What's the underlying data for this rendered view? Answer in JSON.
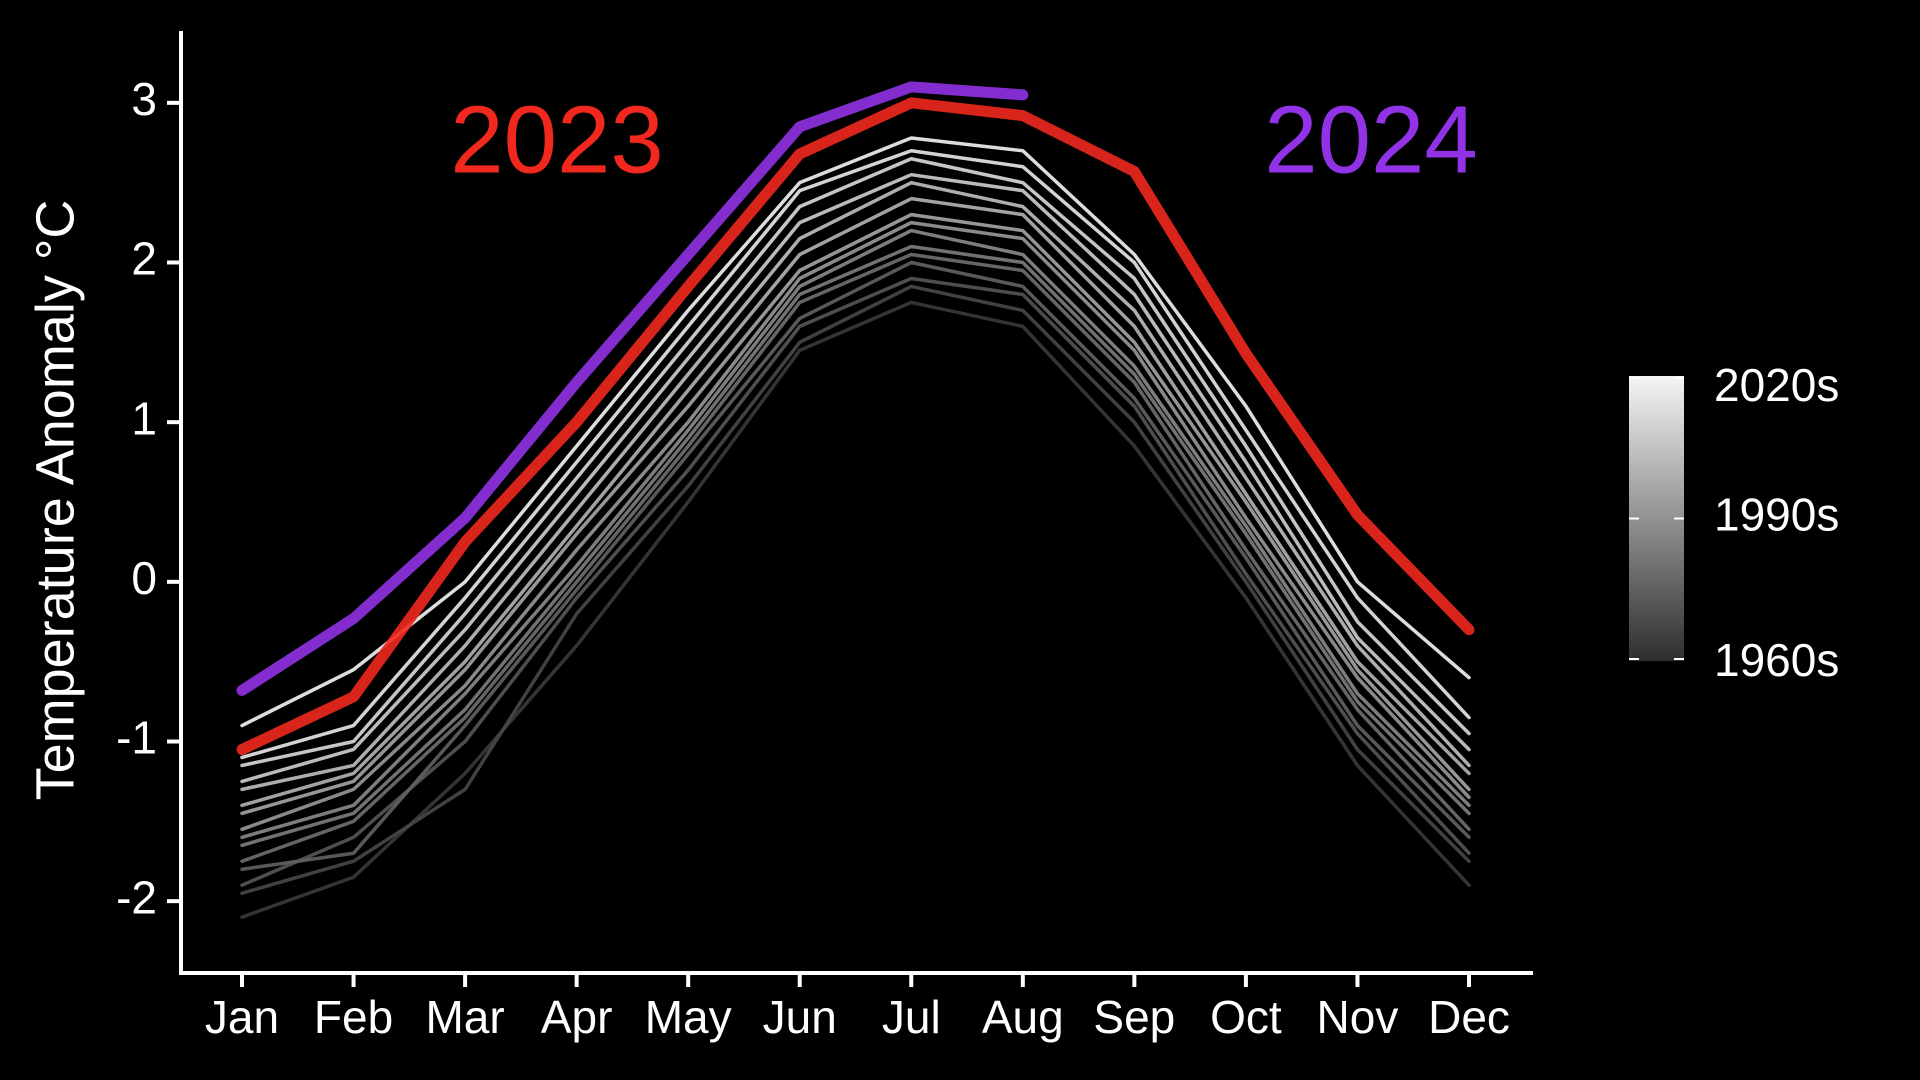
{
  "chart_data": {
    "type": "line",
    "ylabel": "Temperature Anomaly °C",
    "categories": [
      "Jan",
      "Feb",
      "Mar",
      "Apr",
      "May",
      "Jun",
      "Jul",
      "Aug",
      "Sep",
      "Oct",
      "Nov",
      "Dec"
    ],
    "ylim": [
      -2.45,
      3.45
    ],
    "yticks": [
      -2,
      -1,
      0,
      1,
      2,
      3
    ],
    "series": [
      {
        "color": "#3a3a3a",
        "values": [
          -2.1,
          -1.85,
          -1.2,
          -0.4,
          0.5,
          1.45,
          1.75,
          1.6,
          0.85,
          -0.1,
          -1.15,
          -1.9
        ]
      },
      {
        "color": "#484848",
        "values": [
          -1.95,
          -1.75,
          -1.3,
          -0.2,
          0.6,
          1.5,
          1.85,
          1.7,
          1.0,
          0.0,
          -1.05,
          -1.75
        ]
      },
      {
        "color": "#565656",
        "values": [
          -1.9,
          -1.6,
          -1.0,
          -0.1,
          0.7,
          1.6,
          1.9,
          1.8,
          1.1,
          0.05,
          -0.95,
          -1.7
        ]
      },
      {
        "color": "#636363",
        "values": [
          -1.8,
          -1.7,
          -0.9,
          -0.05,
          0.8,
          1.65,
          2.0,
          1.85,
          1.15,
          0.15,
          -0.9,
          -1.6
        ]
      },
      {
        "color": "#707070",
        "values": [
          -1.75,
          -1.5,
          -0.85,
          0.0,
          0.85,
          1.75,
          2.05,
          1.95,
          1.25,
          0.2,
          -0.8,
          -1.55
        ]
      },
      {
        "color": "#7e7e7e",
        "values": [
          -1.65,
          -1.45,
          -0.8,
          0.05,
          0.9,
          1.8,
          2.1,
          2.0,
          1.3,
          0.3,
          -0.75,
          -1.45
        ]
      },
      {
        "color": "#8b8b8b",
        "values": [
          -1.6,
          -1.4,
          -0.7,
          0.1,
          0.95,
          1.85,
          2.2,
          2.05,
          1.35,
          0.35,
          -0.7,
          -1.4
        ]
      },
      {
        "color": "#999999",
        "values": [
          -1.55,
          -1.3,
          -0.65,
          0.2,
          1.0,
          1.9,
          2.25,
          2.15,
          1.45,
          0.4,
          -0.6,
          -1.35
        ]
      },
      {
        "color": "#a6a6a6",
        "values": [
          -1.45,
          -1.25,
          -0.55,
          0.3,
          1.1,
          1.95,
          2.3,
          2.2,
          1.5,
          0.5,
          -0.55,
          -1.3
        ]
      },
      {
        "color": "#b4b4b4",
        "values": [
          -1.4,
          -1.2,
          -0.5,
          0.35,
          1.2,
          2.05,
          2.4,
          2.3,
          1.6,
          0.55,
          -0.5,
          -1.2
        ]
      },
      {
        "color": "#c1c1c1",
        "values": [
          -1.3,
          -1.15,
          -0.4,
          0.45,
          1.3,
          2.15,
          2.5,
          2.35,
          1.7,
          0.65,
          -0.4,
          -1.15
        ]
      },
      {
        "color": "#cfcfcf",
        "values": [
          -1.25,
          -1.05,
          -0.3,
          0.55,
          1.4,
          2.25,
          2.55,
          2.45,
          1.8,
          0.75,
          -0.35,
          -1.05
        ]
      },
      {
        "color": "#dcdcdc",
        "values": [
          -1.15,
          -1.0,
          -0.2,
          0.65,
          1.5,
          2.35,
          2.65,
          2.5,
          1.9,
          0.85,
          -0.25,
          -0.95
        ]
      },
      {
        "color": "#eaeaea",
        "values": [
          -1.1,
          -0.9,
          -0.1,
          0.75,
          1.6,
          2.45,
          2.7,
          2.6,
          2.0,
          0.95,
          -0.1,
          -0.85
        ]
      },
      {
        "color": "#f5f5f5",
        "values": [
          -0.9,
          -0.55,
          0.0,
          0.85,
          1.7,
          2.5,
          2.78,
          2.7,
          2.05,
          1.1,
          0.0,
          -0.6
        ]
      },
      {
        "name": "2023",
        "color": "#f0281e",
        "values": [
          -1.05,
          -0.72,
          0.25,
          1.0,
          1.85,
          2.68,
          3.0,
          2.92,
          2.57,
          1.43,
          0.42,
          -0.3
        ]
      },
      {
        "name": "2024",
        "color": "#9132e6",
        "values": [
          -0.68,
          -0.23,
          0.4,
          1.25,
          2.05,
          2.85,
          3.1,
          3.05,
          null,
          null,
          null,
          null
        ]
      }
    ],
    "colorbar": {
      "ticks": [
        "1960s",
        "1990s",
        "2020s"
      ],
      "colors": [
        "#2e2e2e",
        "#f5f5f5"
      ]
    }
  }
}
